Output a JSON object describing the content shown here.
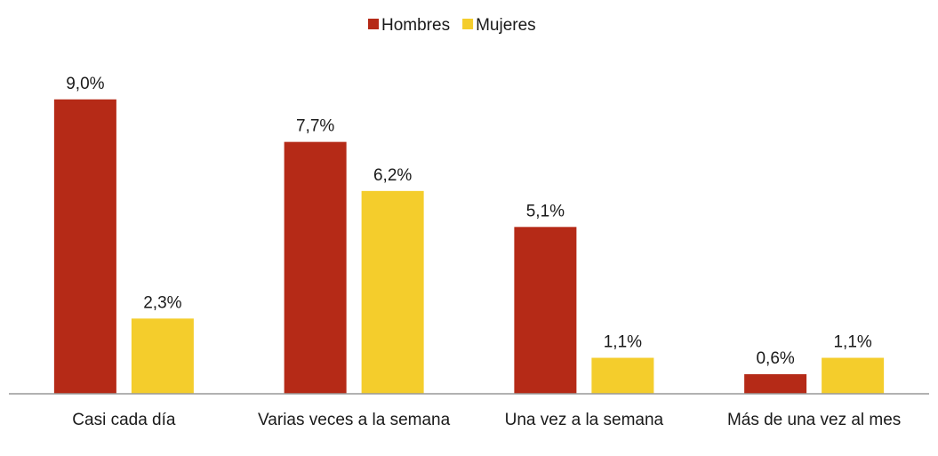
{
  "chart_data": {
    "type": "bar",
    "categories": [
      "Casi cada día",
      "Varias veces a la semana",
      "Una vez a la semana",
      "Más de una vez al mes"
    ],
    "series": [
      {
        "name": "Hombres",
        "color": "#b52a17",
        "values": [
          9.0,
          7.7,
          5.1,
          0.6
        ],
        "value_labels": [
          "9,0%",
          "7,7%",
          "5,1%",
          "0,6%"
        ]
      },
      {
        "name": "Mujeres",
        "color": "#f4cd2c",
        "values": [
          2.3,
          6.2,
          1.1,
          1.1
        ],
        "value_labels": [
          "2,3%",
          "6,2%",
          "1,1%",
          "1,1%"
        ]
      }
    ],
    "ylim": [
      0,
      10
    ],
    "legend": "top"
  }
}
